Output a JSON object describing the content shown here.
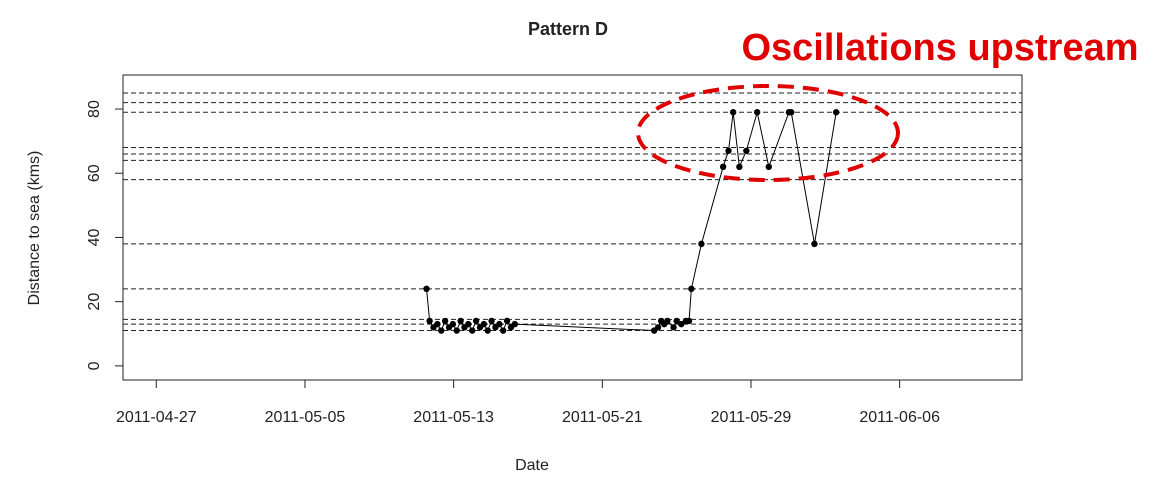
{
  "chart_data": {
    "type": "line",
    "title": "Pattern D",
    "x_label": "Date",
    "y_label": "Distance to sea (kms)",
    "annotation": "Oscillations upstream",
    "x": [
      "2011-05-11 13:00",
      "2011-05-11 17:00",
      "2011-05-11 22:00",
      "2011-05-12 03:00",
      "2011-05-12 08:00",
      "2011-05-12 13:00",
      "2011-05-12 18:00",
      "2011-05-12 23:00",
      "2011-05-13 04:00",
      "2011-05-13 09:00",
      "2011-05-13 14:00",
      "2011-05-13 19:00",
      "2011-05-14 00:00",
      "2011-05-14 05:00",
      "2011-05-14 10:00",
      "2011-05-14 15:00",
      "2011-05-14 20:00",
      "2011-05-15 01:00",
      "2011-05-15 06:00",
      "2011-05-15 11:00",
      "2011-05-15 16:00",
      "2011-05-15 21:00",
      "2011-05-16 02:00",
      "2011-05-16 07:00",
      "2011-05-23 19:00",
      "2011-05-24 00:00",
      "2011-05-24 04:00",
      "2011-05-24 08:00",
      "2011-05-24 12:00",
      "2011-05-24 20:00",
      "2011-05-25 00:00",
      "2011-05-25 06:00",
      "2011-05-25 12:00",
      "2011-05-25 16:00",
      "2011-05-25 19:00",
      "2011-05-26 08:00",
      "2011-05-27 12:00",
      "2011-05-27 19:00",
      "2011-05-28 01:00",
      "2011-05-28 09:00",
      "2011-05-28 18:00",
      "2011-05-29 08:00",
      "2011-05-29 23:00",
      "2011-05-31 01:00",
      "2011-05-31 04:00",
      "2011-06-01 10:00",
      "2011-06-02 14:00"
    ],
    "series": [
      {
        "color": "#000000",
        "values": [
          24,
          14,
          12,
          13,
          11,
          14,
          12,
          13,
          11,
          14,
          12,
          13,
          11,
          14,
          12,
          13,
          11,
          14,
          12,
          13,
          11,
          14,
          12,
          13,
          11,
          12,
          14,
          13,
          14,
          12,
          14,
          13,
          14,
          14,
          24,
          38,
          62,
          67,
          79,
          62,
          67,
          79,
          62,
          79,
          79,
          38,
          79
        ]
      }
    ],
    "hlines": [
      85,
      82,
      79,
      68,
      66,
      64,
      58,
      38,
      24,
      14.5,
      13,
      11
    ],
    "xlim": [
      "2011-04-25 05:00",
      "2011-06-12 14:00"
    ],
    "xticks": [
      "2011-04-27",
      "2011-05-05",
      "2011-05-13",
      "2011-05-21",
      "2011-05-29",
      "2011-06-06"
    ],
    "ylim": [
      -4.4,
      90.6
    ],
    "yticks": [
      0,
      20,
      40,
      60,
      80
    ]
  }
}
